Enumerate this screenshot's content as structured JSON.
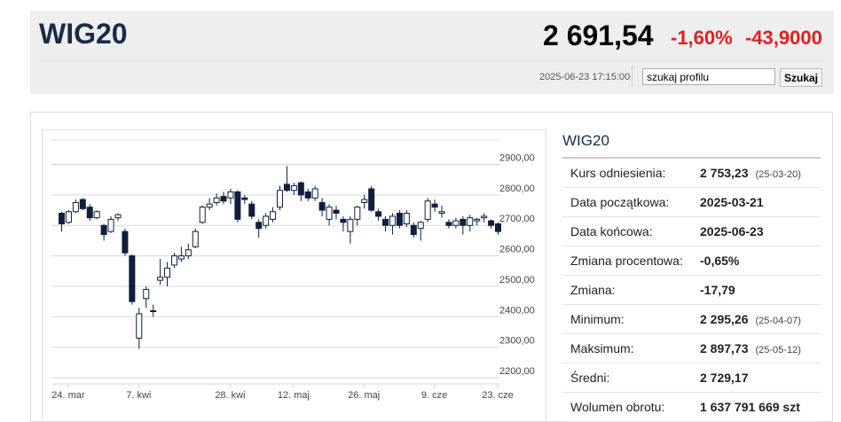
{
  "header": {
    "title": "WIG20",
    "price": "2 691,54",
    "change_pct": "-1,60%",
    "change": "-43,9000",
    "timestamp": "2025-06-23 17:15:00",
    "search_placeholder": "szukaj profilu",
    "search_button": "Szukaj"
  },
  "chart_data": {
    "type": "candlestick",
    "categories": [
      null,
      "24. mar",
      null,
      null,
      null,
      null,
      null,
      null,
      null,
      null,
      null,
      "7. kwi",
      null,
      null,
      null,
      null,
      null,
      null,
      null,
      null,
      null,
      null,
      null,
      null,
      "28. kwi",
      null,
      null,
      null,
      null,
      null,
      null,
      null,
      null,
      "12. maj",
      null,
      null,
      null,
      null,
      null,
      null,
      null,
      null,
      null,
      "26. maj",
      null,
      null,
      null,
      null,
      null,
      null,
      null,
      null,
      null,
      "9. cze",
      null,
      null,
      null,
      null,
      null,
      null,
      null,
      null,
      "23. cze"
    ],
    "open": [
      2740,
      2710,
      2745,
      2785,
      2760,
      2725,
      2700,
      2680,
      2725,
      2680,
      2600,
      2330,
      2460,
      2420,
      2520,
      2530,
      2570,
      2590,
      2600,
      2630,
      2710,
      2760,
      2775,
      2795,
      2790,
      2810,
      2790,
      2770,
      2710,
      2700,
      2720,
      2760,
      2835,
      2815,
      2840,
      2810,
      2790,
      2775,
      2720,
      2750,
      2720,
      2680,
      2720,
      2775,
      2820,
      2745,
      2720,
      2700,
      2740,
      2705,
      2700,
      2690,
      2720,
      2770,
      2740,
      2710,
      2700,
      2720,
      2700,
      2715,
      2725,
      2715,
      2705
    ],
    "high": [
      2745,
      2750,
      2785,
      2790,
      2770,
      2750,
      2705,
      2730,
      2740,
      2690,
      2605,
      2430,
      2500,
      2440,
      2590,
      2580,
      2610,
      2630,
      2640,
      2690,
      2765,
      2790,
      2805,
      2810,
      2820,
      2815,
      2800,
      2780,
      2720,
      2740,
      2760,
      2830,
      2895,
      2840,
      2845,
      2820,
      2830,
      2790,
      2770,
      2765,
      2730,
      2730,
      2765,
      2800,
      2830,
      2755,
      2730,
      2740,
      2750,
      2750,
      2710,
      2715,
      2790,
      2785,
      2765,
      2720,
      2725,
      2730,
      2735,
      2725,
      2740,
      2720,
      2710
    ],
    "low": [
      2680,
      2705,
      2740,
      2750,
      2715,
      2720,
      2650,
      2675,
      2715,
      2600,
      2440,
      2295,
      2430,
      2400,
      2505,
      2500,
      2560,
      2580,
      2590,
      2625,
      2705,
      2750,
      2765,
      2770,
      2770,
      2710,
      2770,
      2720,
      2660,
      2690,
      2710,
      2750,
      2810,
      2800,
      2780,
      2780,
      2780,
      2730,
      2700,
      2720,
      2680,
      2640,
      2700,
      2755,
      2745,
      2715,
      2680,
      2670,
      2690,
      2695,
      2660,
      2650,
      2710,
      2745,
      2725,
      2690,
      2690,
      2670,
      2680,
      2700,
      2710,
      2690,
      2670
    ],
    "close": [
      2705,
      2745,
      2775,
      2755,
      2725,
      2745,
      2670,
      2720,
      2735,
      2610,
      2450,
      2410,
      2490,
      2420,
      2530,
      2560,
      2600,
      2600,
      2620,
      2680,
      2760,
      2770,
      2790,
      2780,
      2810,
      2720,
      2785,
      2730,
      2690,
      2730,
      2745,
      2815,
      2815,
      2830,
      2800,
      2790,
      2820,
      2750,
      2760,
      2740,
      2710,
      2720,
      2760,
      2785,
      2750,
      2730,
      2700,
      2730,
      2700,
      2740,
      2670,
      2710,
      2780,
      2760,
      2745,
      2700,
      2715,
      2700,
      2725,
      2720,
      2730,
      2700,
      2680
    ],
    "ylim": [
      2180,
      2980
    ],
    "yticks": [
      {
        "value": 2200,
        "label": "2200,00"
      },
      {
        "value": 2300,
        "label": "2300,00"
      },
      {
        "value": 2400,
        "label": "2400,00"
      },
      {
        "value": 2500,
        "label": "2500,00"
      },
      {
        "value": 2600,
        "label": "2600,00"
      },
      {
        "value": 2700,
        "label": "2700,00"
      },
      {
        "value": 2800,
        "label": "2800,00"
      },
      {
        "value": 2900,
        "label": "2900,00"
      }
    ],
    "grid": true,
    "up_color": "#ffffff",
    "down_color": "#0f1f3d"
  },
  "stats": {
    "title": "WIG20",
    "rows": [
      {
        "label": "Kurs odniesienia:",
        "value": "2 753,23",
        "note": "(25-03-20)"
      },
      {
        "label": "Data początkowa:",
        "value": "2025-03-21"
      },
      {
        "label": "Data końcowa:",
        "value": "2025-06-23"
      },
      {
        "label": "Zmiana procentowa:",
        "value": "-0,65%"
      },
      {
        "label": "Zmiana:",
        "value": "-17,79"
      },
      {
        "label": "Minimum:",
        "value": "2 295,26",
        "note": "(25-04-07)"
      },
      {
        "label": "Maksimum:",
        "value": "2 897,73",
        "note": "(25-05-12)"
      },
      {
        "label": "Średni:",
        "value": "2 729,17"
      },
      {
        "label": "Wolumen obrotu:",
        "value": "1 637 791 669 szt"
      }
    ]
  }
}
